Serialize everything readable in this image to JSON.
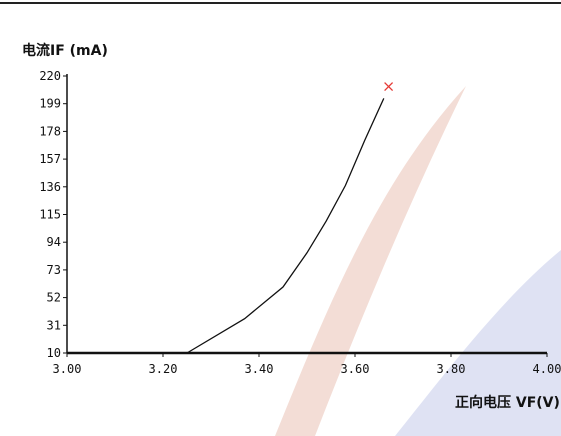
{
  "chart_data": {
    "type": "line",
    "ylabel": "电流IF (mA)",
    "xlabel": "正向电压 VF(V)",
    "xlim": [
      3.0,
      4.0
    ],
    "ylim": [
      10,
      220
    ],
    "x_ticks": [
      "3.00",
      "3.20",
      "3.40",
      "3.60",
      "3.80",
      "4.00"
    ],
    "y_ticks": [
      "220",
      "199",
      "178",
      "157",
      "136",
      "115",
      "94",
      "73",
      "52",
      "31",
      "10"
    ],
    "series": [
      {
        "x": [
          3.25,
          3.37,
          3.45,
          3.5,
          3.54,
          3.58,
          3.62,
          3.66
        ],
        "y": [
          10,
          36,
          60,
          86,
          110,
          137,
          171,
          203
        ]
      }
    ],
    "end_marker": {
      "x": 3.67,
      "y": 212,
      "symbol": "x",
      "color": "#e53935"
    },
    "colors": {
      "line": "#111111",
      "axis": "#111111",
      "marker": "#e53935",
      "watermark_red": "#f3ddd6",
      "watermark_blue": "#dfe2f3"
    }
  }
}
